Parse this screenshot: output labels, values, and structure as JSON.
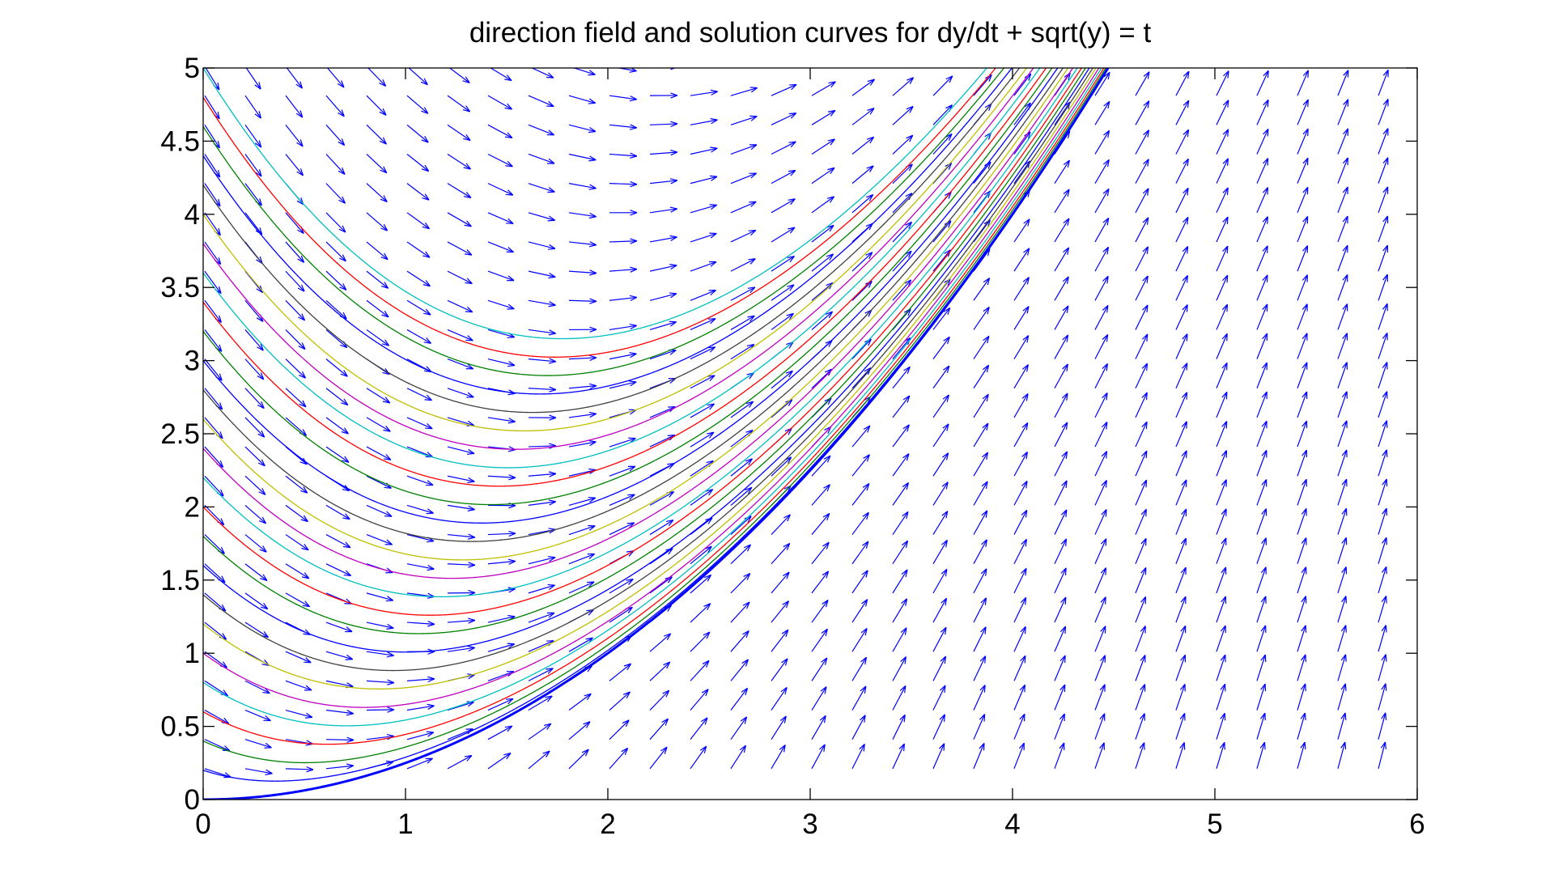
{
  "chart_data": {
    "type": "line",
    "title": "direction field and solution curves for dy/dt + sqrt(y) = t",
    "equation": "dy/dt = t - sqrt(y)",
    "xlabel": "",
    "ylabel": "",
    "xlim": [
      0,
      6
    ],
    "ylim": [
      0,
      5
    ],
    "x_ticks": [
      0,
      1,
      2,
      3,
      4,
      5,
      6
    ],
    "y_ticks": [
      0,
      0.5,
      1,
      1.5,
      2,
      2.5,
      3,
      3.5,
      4,
      4.5,
      5
    ],
    "x_tick_labels": [
      "0",
      "1",
      "2",
      "3",
      "4",
      "5",
      "6"
    ],
    "y_tick_labels": [
      "0",
      "0.5",
      "1",
      "1.5",
      "2",
      "2.5",
      "3",
      "3.5",
      "4",
      "4.5",
      "5"
    ],
    "grid": false,
    "legend": "none",
    "direction_field": {
      "t_values": [
        0,
        0.2,
        0.4,
        0.6,
        0.8,
        1.0,
        1.2,
        1.4,
        1.6,
        1.8,
        2.0,
        2.2,
        2.4,
        2.6,
        2.8,
        3.0,
        3.2,
        3.4,
        3.6,
        3.8,
        4.0,
        4.2,
        4.4,
        4.6,
        4.8,
        5.0,
        5.2,
        5.4,
        5.6,
        5.8
      ],
      "y_values": [
        0.2,
        0.4,
        0.6,
        0.8,
        1.0,
        1.2,
        1.4,
        1.6,
        1.8,
        2.0,
        2.2,
        2.4,
        2.6,
        2.8,
        3.0,
        3.2,
        3.4,
        3.6,
        3.8,
        4.0,
        4.2,
        4.4,
        4.6,
        4.8,
        5.0
      ],
      "color": "#0000ff"
    },
    "solution_curves": {
      "t_start": 0,
      "t_end": 6,
      "initial_values": [
        0,
        0.2,
        0.4,
        0.6,
        0.8,
        1.0,
        1.2,
        1.4,
        1.6,
        1.8,
        2.0,
        2.2,
        2.4,
        2.6,
        2.8,
        3.0,
        3.2,
        3.4,
        3.6,
        3.8,
        4.0,
        4.2,
        4.4,
        4.6,
        4.8,
        5.0
      ],
      "colors": [
        "#0000ff",
        "#0000ff",
        "#008000",
        "#ff0000",
        "#00bfbf",
        "#bf00bf",
        "#bfbf00",
        "#404040",
        "#0000ff",
        "#008000",
        "#ff0000",
        "#00bfbf",
        "#bf00bf",
        "#bfbf00",
        "#404040",
        "#0000ff",
        "#008000",
        "#ff0000",
        "#00bfbf",
        "#bf00bf",
        "#bfbf00",
        "#404040",
        "#0000ff",
        "#008000",
        "#ff0000",
        "#00bfbf"
      ]
    }
  }
}
